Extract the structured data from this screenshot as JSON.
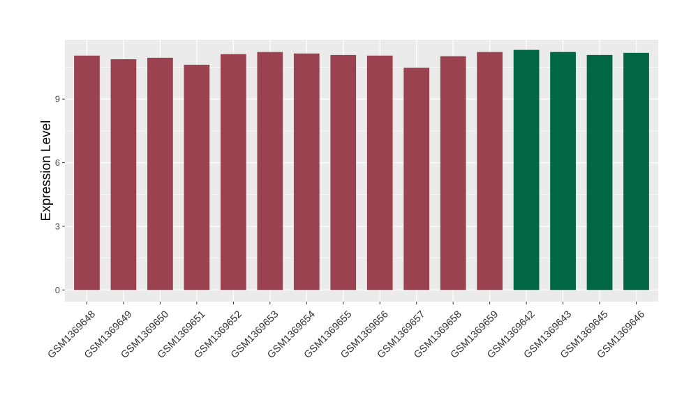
{
  "chart_data": {
    "type": "bar",
    "title": "",
    "xlabel": "",
    "ylabel": "Expression Level",
    "ylim": [
      -0.55,
      11.8
    ],
    "yticks": [
      0,
      3,
      6,
      9
    ],
    "grid": true,
    "legend": "none",
    "categories": [
      "GSM1369648",
      "GSM1369649",
      "GSM1369650",
      "GSM1369651",
      "GSM1369652",
      "GSM1369653",
      "GSM1369654",
      "GSM1369655",
      "GSM1369656",
      "GSM1369657",
      "GSM1369658",
      "GSM1369659",
      "GSM1369642",
      "GSM1369643",
      "GSM1369645",
      "GSM1369646"
    ],
    "values": [
      11.05,
      10.88,
      10.95,
      10.62,
      11.12,
      11.22,
      11.15,
      11.08,
      11.05,
      10.48,
      11.02,
      11.22,
      11.32,
      11.22,
      11.08,
      11.18
    ],
    "group_index": [
      0,
      0,
      0,
      0,
      0,
      0,
      0,
      0,
      0,
      0,
      0,
      0,
      1,
      1,
      1,
      1
    ],
    "colors": [
      "#9b4250",
      "#006644"
    ],
    "panel_background": "#ebebeb",
    "grid_color": "#ffffff"
  }
}
